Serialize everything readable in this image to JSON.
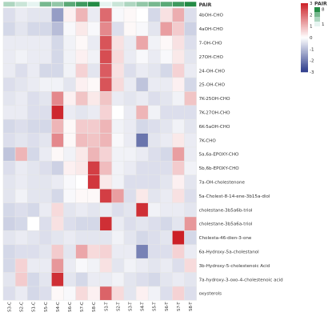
{
  "chart_data": {
    "type": "heatmap",
    "title": "",
    "xlabel": "",
    "ylabel": "",
    "columns": [
      "S3-C",
      "S2-C",
      "S1-C",
      "S5-C",
      "S4-C",
      "S6-C",
      "S7-C",
      "S8-C",
      "S1-T",
      "S2-T",
      "S3-T",
      "S4-T",
      "S5-T",
      "S6-T",
      "S7-T",
      "S8-T"
    ],
    "rows": [
      "4bOH-CHO",
      "4aOH-CHO",
      "7-OH-CHO",
      "27OH-CHO",
      "24-OH-CHO",
      "25-OH-CHO",
      "7K-25OH-CHO",
      "7K-27OH-CHO",
      "6K-5aOH-CHO",
      "7K-CHO",
      "5a,6a-EPOXY-CHO",
      "5b,6b-EPOXY-CHO",
      "7a-OH-cholestenone",
      "5a-Cholest-8-14-ene-3b15a-diol",
      "cholestane-3b5a6b-triol",
      "cholestane-3b5a6a-triol",
      "Cholesta-46-dien-3-one",
      "6a-Hydroxy-5a-cholestanol",
      "3b-Hydroxy-5-cholestenoic Acid",
      "7a-hydroxy-3-oxo-4-cholestenoic acid",
      "oxysterols"
    ],
    "values": [
      [
        -0.5,
        -0.3,
        -0.4,
        -0.4,
        -1.5,
        0.2,
        1.0,
        -0.3,
        2.0,
        -0.1,
        0.1,
        0.0,
        -0.6,
        0.4,
        1.1,
        -0.5
      ],
      [
        -0.6,
        -0.4,
        -0.6,
        -0.6,
        -1.0,
        -0.1,
        0.3,
        -0.1,
        1.6,
        -0.5,
        0.1,
        -0.1,
        -0.4,
        1.3,
        0.7,
        -0.7
      ],
      [
        -0.3,
        -0.3,
        -0.3,
        -0.3,
        -0.6,
        -0.2,
        0.1,
        -0.3,
        2.3,
        0.4,
        -0.3,
        1.2,
        -0.2,
        0.1,
        0.4,
        -0.5
      ],
      [
        -0.3,
        -0.2,
        -0.3,
        -0.3,
        -0.6,
        -0.2,
        0.2,
        -0.2,
        2.4,
        0.5,
        -0.3,
        -0.1,
        -0.3,
        -0.1,
        0.3,
        -0.4
      ],
      [
        -0.3,
        -0.5,
        -0.3,
        -0.6,
        -0.6,
        -0.2,
        0.6,
        -0.4,
        2.2,
        0.4,
        -0.5,
        -0.3,
        -0.4,
        -0.6,
        0.6,
        -0.3
      ],
      [
        -0.5,
        -0.4,
        -0.3,
        -0.2,
        -0.2,
        -0.4,
        0.2,
        0.1,
        2.3,
        0.5,
        -0.3,
        -0.9,
        -0.3,
        -0.3,
        0.2,
        -0.6
      ],
      [
        -0.4,
        -0.3,
        -0.5,
        -0.4,
        1.6,
        0.2,
        0.8,
        0.3,
        0.8,
        -0.3,
        -0.4,
        -0.3,
        -0.5,
        -0.4,
        -0.2,
        0.8
      ],
      [
        -0.3,
        -0.3,
        -0.5,
        -0.5,
        2.9,
        -0.3,
        -0.4,
        -0.3,
        0.6,
        0.0,
        -0.3,
        1.0,
        -0.2,
        -0.5,
        -0.5,
        -0.5
      ],
      [
        -0.6,
        -0.5,
        -0.6,
        -0.6,
        1.0,
        0.1,
        0.7,
        0.7,
        1.0,
        -0.2,
        -0.3,
        -0.6,
        -0.5,
        -0.4,
        -0.2,
        -0.4
      ],
      [
        -0.5,
        -0.4,
        -0.5,
        -0.4,
        1.6,
        0.1,
        0.9,
        0.8,
        1.0,
        -0.1,
        -0.3,
        -2.1,
        -0.4,
        -0.3,
        0.3,
        -0.3
      ],
      [
        -0.9,
        1.0,
        -0.6,
        -0.3,
        0.1,
        -0.2,
        0.3,
        1.0,
        0.6,
        -0.2,
        -0.2,
        -0.3,
        -0.5,
        -0.6,
        1.3,
        -0.3
      ],
      [
        -0.5,
        -0.3,
        -0.4,
        -0.5,
        -0.7,
        0.2,
        0.3,
        2.6,
        0.9,
        -0.2,
        -0.3,
        -0.5,
        -0.5,
        -0.5,
        0.7,
        -0.2
      ],
      [
        -0.4,
        -0.3,
        -0.4,
        -0.4,
        -0.3,
        -0.1,
        0.0,
        2.7,
        0.3,
        -0.2,
        -0.5,
        -0.5,
        -0.5,
        -0.4,
        0.2,
        -0.4
      ],
      [
        -0.4,
        -0.2,
        -0.4,
        -0.4,
        -0.6,
        -0.1,
        0.1,
        0.1,
        2.6,
        1.3,
        -0.5,
        0.3,
        -0.4,
        -0.3,
        0.4,
        -0.5
      ],
      [
        -0.6,
        -0.5,
        -0.6,
        -0.3,
        0.5,
        -0.4,
        -0.3,
        -0.4,
        -0.3,
        -0.5,
        -0.4,
        2.8,
        -0.2,
        -0.3,
        -0.3,
        -0.4
      ],
      [
        -0.7,
        -0.6,
        0.0,
        -0.5,
        0.4,
        -0.5,
        -0.6,
        -0.6,
        2.8,
        -0.3,
        -0.5,
        -0.4,
        -0.5,
        -0.6,
        -0.4,
        1.4
      ],
      [
        -0.4,
        -0.3,
        -0.4,
        -0.5,
        -0.4,
        -0.3,
        -0.4,
        -0.4,
        -0.4,
        -0.2,
        -0.4,
        -0.6,
        -0.5,
        -0.4,
        3.0,
        -0.6
      ],
      [
        -0.6,
        -0.5,
        -0.5,
        -0.4,
        0.7,
        -0.4,
        1.2,
        0.5,
        0.6,
        -0.3,
        -0.3,
        -1.9,
        -0.5,
        -0.5,
        0.6,
        -0.3
      ],
      [
        -0.6,
        0.6,
        -0.3,
        -0.3,
        1.4,
        -0.3,
        -0.1,
        -0.2,
        0.4,
        -0.4,
        -0.2,
        -0.3,
        -0.4,
        -0.3,
        -0.5,
        0.5
      ],
      [
        -0.4,
        0.7,
        -0.6,
        -0.4,
        2.8,
        -0.4,
        -0.6,
        -0.3,
        -0.3,
        -0.2,
        -0.4,
        -0.5,
        -0.6,
        -0.4,
        -0.3,
        -0.4
      ],
      [
        -0.5,
        -0.3,
        -0.6,
        -0.5,
        0.1,
        -0.1,
        0.5,
        0.2,
        2.1,
        0.5,
        -0.4,
        0.2,
        -0.2,
        -0.5,
        0.6,
        -0.5
      ]
    ],
    "color_scale": {
      "min": -3,
      "max": 3,
      "ticks": [
        3,
        2,
        1,
        0,
        -1,
        -2,
        -3
      ],
      "colors": {
        "low": "#2a3a8a",
        "mid": "#ffffff",
        "high": "#cc2027"
      }
    },
    "annotation": {
      "title": "PAIR",
      "levels": [
        "8",
        "7",
        "6",
        "5",
        "4",
        "3",
        "2",
        "1"
      ],
      "column_pairs": [
        3,
        2,
        1,
        5,
        4,
        6,
        7,
        8,
        1,
        2,
        3,
        4,
        5,
        6,
        7,
        8
      ],
      "colors": {
        "1": "#e6f4f1",
        "8": "#238b45"
      }
    },
    "legend_placement": "top-right",
    "grid": true
  }
}
